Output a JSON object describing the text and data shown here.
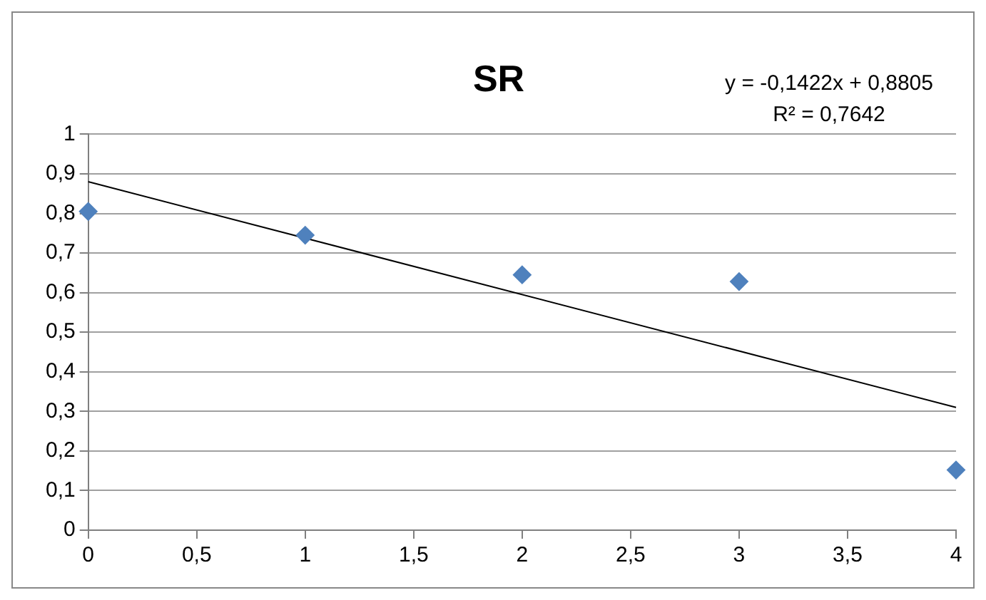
{
  "chart_data": {
    "type": "scatter",
    "title": "SR",
    "annotations": [
      "y = -0,1422x + 0,8805",
      "R² = 0,7642"
    ],
    "x": [
      0,
      1,
      2,
      3,
      4
    ],
    "series": [
      {
        "color": "#4f81bd",
        "marker": "diamond",
        "values": [
          0.805,
          0.745,
          0.645,
          0.628,
          0.152
        ]
      },
      {
        "type": "line",
        "color": "#000000",
        "marker": "none",
        "x": [
          0,
          4
        ],
        "values": [
          0.88,
          0.31
        ]
      }
    ],
    "xlim": [
      0,
      4
    ],
    "xticks": [
      0,
      {
        "value": 0.5,
        "label": "0,5"
      },
      1,
      {
        "value": 1.5,
        "label": "1,5"
      },
      2,
      {
        "value": 2.5,
        "label": "2,5"
      },
      3,
      {
        "value": 3.5,
        "label": "3,5"
      },
      4
    ],
    "ylim": [
      0,
      1
    ],
    "yticks": [
      0,
      {
        "value": 0.1,
        "label": "0,1"
      },
      {
        "value": 0.2,
        "label": "0,2"
      },
      {
        "value": 0.3,
        "label": "0,3"
      },
      {
        "value": 0.4,
        "label": "0,4"
      },
      {
        "value": 0.5,
        "label": "0,5"
      },
      {
        "value": 0.6,
        "label": "0,6"
      },
      {
        "value": 0.7,
        "label": "0,7"
      },
      {
        "value": 0.8,
        "label": "0,8"
      },
      {
        "value": 0.9,
        "label": "0,9"
      },
      1
    ],
    "grid": "y",
    "legend": false
  }
}
